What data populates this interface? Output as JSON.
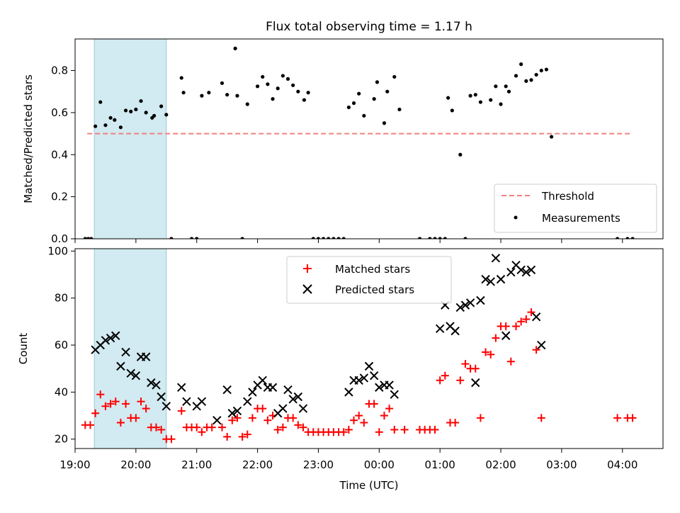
{
  "title": "Flux total observing time = 1.17 h",
  "colors": {
    "span": "#add8e6",
    "threshold": "#f08080",
    "measurement": "#000000",
    "matched": "#ff0000",
    "predicted": "#000000"
  },
  "chart_data": [
    {
      "type": "scatter",
      "ylabel": "Matched/Predicted stars",
      "xlim": [
        "19:00",
        "04:40"
      ],
      "ylim": [
        0,
        0.95
      ],
      "yticks": [
        "0.0",
        "0.2",
        "0.4",
        "0.6",
        "0.8"
      ],
      "highlight_span": [
        "19:19",
        "20:30"
      ],
      "legend_position": "bottom-right",
      "threshold": {
        "name": "Threshold",
        "value": 0.5,
        "x_range": [
          "19:12",
          "04:10"
        ]
      },
      "series": [
        {
          "name": "Measurements",
          "points": [
            [
              "19:10",
              0.0
            ],
            [
              "19:13",
              0.0
            ],
            [
              "19:16",
              0.0
            ],
            [
              "19:20",
              0.535
            ],
            [
              "19:25",
              0.65
            ],
            [
              "19:30",
              0.54
            ],
            [
              "19:35",
              0.575
            ],
            [
              "19:39",
              0.565
            ],
            [
              "19:45",
              0.53
            ],
            [
              "19:50",
              0.61
            ],
            [
              "19:55",
              0.605
            ],
            [
              "20:00",
              0.615
            ],
            [
              "20:05",
              0.655
            ],
            [
              "20:10",
              0.6
            ],
            [
              "20:16",
              0.575
            ],
            [
              "20:18",
              0.585
            ],
            [
              "20:25",
              0.63
            ],
            [
              "20:30",
              0.59
            ],
            [
              "20:35",
              0.0
            ],
            [
              "20:45",
              0.765
            ],
            [
              "20:47",
              0.695
            ],
            [
              "20:55",
              0.0
            ],
            [
              "21:00",
              0.0
            ],
            [
              "21:05",
              0.68
            ],
            [
              "21:12",
              0.695
            ],
            [
              "21:25",
              0.74
            ],
            [
              "21:30",
              0.685
            ],
            [
              "21:38",
              0.905
            ],
            [
              "21:40",
              0.68
            ],
            [
              "21:45",
              0.0
            ],
            [
              "21:50",
              0.64
            ],
            [
              "22:00",
              0.725
            ],
            [
              "22:05",
              0.77
            ],
            [
              "22:10",
              0.735
            ],
            [
              "22:15",
              0.665
            ],
            [
              "22:20",
              0.715
            ],
            [
              "22:25",
              0.775
            ],
            [
              "22:30",
              0.76
            ],
            [
              "22:35",
              0.73
            ],
            [
              "22:40",
              0.7
            ],
            [
              "22:46",
              0.66
            ],
            [
              "22:50",
              0.695
            ],
            [
              "22:55",
              0.0
            ],
            [
              "23:00",
              0.0
            ],
            [
              "23:05",
              0.0
            ],
            [
              "23:10",
              0.0
            ],
            [
              "23:15",
              0.0
            ],
            [
              "23:20",
              0.0
            ],
            [
              "23:25",
              0.0
            ],
            [
              "23:30",
              0.625
            ],
            [
              "23:35",
              0.645
            ],
            [
              "23:40",
              0.69
            ],
            [
              "23:45",
              0.585
            ],
            [
              "23:55",
              0.665
            ],
            [
              "23:58",
              0.745
            ],
            [
              "00:05",
              0.55
            ],
            [
              "00:08",
              0.7
            ],
            [
              "00:15",
              0.77
            ],
            [
              "00:20",
              0.615
            ],
            [
              "00:40",
              0.0
            ],
            [
              "00:50",
              0.0
            ],
            [
              "00:55",
              0.0
            ],
            [
              "01:00",
              0.0
            ],
            [
              "01:05",
              0.0
            ],
            [
              "01:08",
              0.67
            ],
            [
              "01:12",
              0.61
            ],
            [
              "01:20",
              0.4
            ],
            [
              "01:25",
              0.0
            ],
            [
              "01:30",
              0.68
            ],
            [
              "01:35",
              0.685
            ],
            [
              "01:40",
              0.65
            ],
            [
              "01:50",
              0.66
            ],
            [
              "01:55",
              0.725
            ],
            [
              "02:00",
              0.64
            ],
            [
              "02:05",
              0.725
            ],
            [
              "02:08",
              0.7
            ],
            [
              "02:15",
              0.775
            ],
            [
              "02:20",
              0.83
            ],
            [
              "02:25",
              0.75
            ],
            [
              "02:30",
              0.755
            ],
            [
              "02:35",
              0.78
            ],
            [
              "02:40",
              0.8
            ],
            [
              "02:45",
              0.805
            ],
            [
              "02:50",
              0.485
            ],
            [
              "03:55",
              0.0
            ],
            [
              "04:05",
              0.0
            ],
            [
              "04:10",
              0.0
            ]
          ]
        }
      ]
    },
    {
      "type": "scatter",
      "xlabel": "Time (UTC)",
      "ylabel": "Count",
      "xlim": [
        "19:00",
        "04:40"
      ],
      "ylim": [
        16,
        101
      ],
      "yticks": [
        "20",
        "40",
        "60",
        "80",
        "100"
      ],
      "xticks": [
        "19:00",
        "20:00",
        "21:00",
        "22:00",
        "23:00",
        "00:00",
        "01:00",
        "02:00",
        "03:00",
        "04:00"
      ],
      "highlight_span": [
        "19:19",
        "20:30"
      ],
      "legend_position": "upper center",
      "series": [
        {
          "name": "Matched stars",
          "marker": "+",
          "points": [
            [
              "19:10",
              26
            ],
            [
              "19:15",
              26
            ],
            [
              "19:20",
              31
            ],
            [
              "19:25",
              39
            ],
            [
              "19:30",
              34
            ],
            [
              "19:35",
              35
            ],
            [
              "19:40",
              36
            ],
            [
              "19:45",
              27
            ],
            [
              "19:50",
              35
            ],
            [
              "19:55",
              29
            ],
            [
              "20:00",
              29
            ],
            [
              "20:05",
              36
            ],
            [
              "20:10",
              33
            ],
            [
              "20:15",
              25
            ],
            [
              "20:20",
              25
            ],
            [
              "20:25",
              24
            ],
            [
              "20:30",
              20
            ],
            [
              "20:35",
              20
            ],
            [
              "20:45",
              32
            ],
            [
              "20:50",
              25
            ],
            [
              "20:55",
              25
            ],
            [
              "21:00",
              25
            ],
            [
              "21:05",
              23
            ],
            [
              "21:10",
              25
            ],
            [
              "21:15",
              25
            ],
            [
              "21:25",
              25
            ],
            [
              "21:30",
              21
            ],
            [
              "21:35",
              28
            ],
            [
              "21:40",
              29
            ],
            [
              "21:45",
              21
            ],
            [
              "21:50",
              22
            ],
            [
              "21:55",
              29
            ],
            [
              "22:00",
              33
            ],
            [
              "22:05",
              33
            ],
            [
              "22:10",
              28
            ],
            [
              "22:15",
              30
            ],
            [
              "22:20",
              24
            ],
            [
              "22:25",
              25
            ],
            [
              "22:30",
              29
            ],
            [
              "22:35",
              29
            ],
            [
              "22:40",
              26
            ],
            [
              "22:45",
              25
            ],
            [
              "22:50",
              23
            ],
            [
              "22:55",
              23
            ],
            [
              "23:00",
              23
            ],
            [
              "23:05",
              23
            ],
            [
              "23:10",
              23
            ],
            [
              "23:15",
              23
            ],
            [
              "23:20",
              23
            ],
            [
              "23:25",
              23
            ],
            [
              "23:30",
              24
            ],
            [
              "23:35",
              28
            ],
            [
              "23:40",
              30
            ],
            [
              "23:45",
              27
            ],
            [
              "23:50",
              35
            ],
            [
              "23:55",
              35
            ],
            [
              "00:00",
              23
            ],
            [
              "00:05",
              30
            ],
            [
              "00:10",
              33
            ],
            [
              "00:15",
              24
            ],
            [
              "00:25",
              24
            ],
            [
              "00:40",
              24
            ],
            [
              "00:45",
              24
            ],
            [
              "00:50",
              24
            ],
            [
              "00:55",
              24
            ],
            [
              "01:00",
              45
            ],
            [
              "01:05",
              47
            ],
            [
              "01:10",
              27
            ],
            [
              "01:15",
              27
            ],
            [
              "01:20",
              45
            ],
            [
              "01:25",
              52
            ],
            [
              "01:30",
              50
            ],
            [
              "01:35",
              50
            ],
            [
              "01:40",
              29
            ],
            [
              "01:45",
              57
            ],
            [
              "01:50",
              56
            ],
            [
              "01:55",
              63
            ],
            [
              "02:00",
              68
            ],
            [
              "02:05",
              68
            ],
            [
              "02:10",
              53
            ],
            [
              "02:15",
              68
            ],
            [
              "02:20",
              70
            ],
            [
              "02:25",
              71
            ],
            [
              "02:30",
              74
            ],
            [
              "02:35",
              58
            ],
            [
              "02:40",
              29
            ],
            [
              "03:55",
              29
            ],
            [
              "04:05",
              29
            ],
            [
              "04:10",
              29
            ]
          ]
        },
        {
          "name": "Predicted stars",
          "marker": "x",
          "points": [
            [
              "19:20",
              58
            ],
            [
              "19:25",
              60
            ],
            [
              "19:30",
              62
            ],
            [
              "19:35",
              63
            ],
            [
              "19:40",
              64
            ],
            [
              "19:45",
              51
            ],
            [
              "19:50",
              57
            ],
            [
              "19:55",
              48
            ],
            [
              "20:00",
              47
            ],
            [
              "20:05",
              55
            ],
            [
              "20:10",
              55
            ],
            [
              "20:15",
              44
            ],
            [
              "20:20",
              43
            ],
            [
              "20:25",
              38
            ],
            [
              "20:30",
              34
            ],
            [
              "20:45",
              42
            ],
            [
              "20:50",
              36
            ],
            [
              "21:00",
              34
            ],
            [
              "21:05",
              36
            ],
            [
              "21:20",
              28
            ],
            [
              "21:30",
              41
            ],
            [
              "21:35",
              31
            ],
            [
              "21:40",
              32
            ],
            [
              "21:50",
              36
            ],
            [
              "21:55",
              40
            ],
            [
              "22:00",
              43
            ],
            [
              "22:05",
              45
            ],
            [
              "22:10",
              42
            ],
            [
              "22:15",
              42
            ],
            [
              "22:20",
              31
            ],
            [
              "22:25",
              33
            ],
            [
              "22:30",
              41
            ],
            [
              "22:35",
              37
            ],
            [
              "22:40",
              38
            ],
            [
              "22:45",
              33
            ],
            [
              "23:30",
              40
            ],
            [
              "23:35",
              45
            ],
            [
              "23:40",
              45
            ],
            [
              "23:45",
              46
            ],
            [
              "23:50",
              51
            ],
            [
              "23:55",
              47
            ],
            [
              "00:00",
              42
            ],
            [
              "00:05",
              43
            ],
            [
              "00:10",
              43
            ],
            [
              "00:15",
              39
            ],
            [
              "01:00",
              67
            ],
            [
              "01:05",
              77
            ],
            [
              "01:10",
              68
            ],
            [
              "01:15",
              66
            ],
            [
              "01:20",
              76
            ],
            [
              "01:25",
              77
            ],
            [
              "01:30",
              78
            ],
            [
              "01:35",
              44
            ],
            [
              "01:40",
              79
            ],
            [
              "01:45",
              88
            ],
            [
              "01:50",
              87
            ],
            [
              "01:55",
              97
            ],
            [
              "02:00",
              88
            ],
            [
              "02:05",
              64
            ],
            [
              "02:10",
              91
            ],
            [
              "02:15",
              94
            ],
            [
              "02:20",
              92
            ],
            [
              "02:25",
              91
            ],
            [
              "02:30",
              92
            ],
            [
              "02:35",
              72
            ],
            [
              "02:40",
              60
            ]
          ]
        }
      ]
    }
  ]
}
